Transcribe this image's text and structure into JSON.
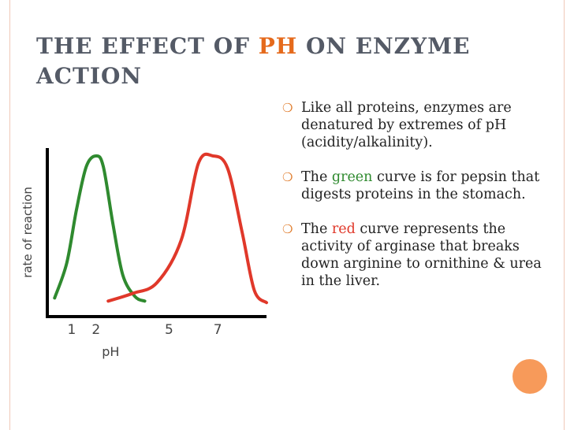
{
  "slide": {
    "title_part1": "THE EFFECT OF ",
    "title_accent": "PH",
    "title_part2": " ON ENZYME ACTION",
    "bullets": [
      {
        "icon": "hollow-circle-bullet",
        "text": "Like all proteins, enzymes are denatured by extremes of pH (acidity/alkalinity)."
      },
      {
        "icon": "hollow-circle-bullet",
        "pre": "The ",
        "highlight": "green",
        "post": " curve is for pepsin that digests proteins in the stomach."
      },
      {
        "icon": "hollow-circle-bullet",
        "pre": "The ",
        "highlight": "red",
        "post": " curve represents the activity of arginase that breaks down arginine to ornithine & urea in the liver."
      }
    ],
    "colors": {
      "title": "#545a66",
      "accent": "#e56a1c",
      "green": "#2f8a2f",
      "red": "#e0382a",
      "frame": "#f0c9b8",
      "circle": "#f79a5a"
    }
  },
  "chart_data": {
    "type": "line",
    "xlabel": "pH",
    "ylabel": "rate of reaction",
    "x_ticks": [
      "1",
      "2",
      "5",
      "7"
    ],
    "xlim": [
      0,
      9
    ],
    "ylim": [
      0,
      1
    ],
    "series": [
      {
        "color": "#2f8a2f",
        "x": [
          0.3,
          0.8,
          1.2,
          1.6,
          2.0,
          2.3,
          2.7,
          3.1,
          3.6,
          4.0
        ],
        "y": [
          0.07,
          0.3,
          0.65,
          0.93,
          1.0,
          0.93,
          0.55,
          0.22,
          0.08,
          0.05
        ]
      },
      {
        "color": "#e0382a",
        "x": [
          2.5,
          3.5,
          4.5,
          5.5,
          6.2,
          6.8,
          7.4,
          8.0,
          8.5,
          9.0
        ],
        "y": [
          0.05,
          0.1,
          0.17,
          0.45,
          0.95,
          1.0,
          0.92,
          0.5,
          0.12,
          0.04
        ]
      }
    ]
  }
}
